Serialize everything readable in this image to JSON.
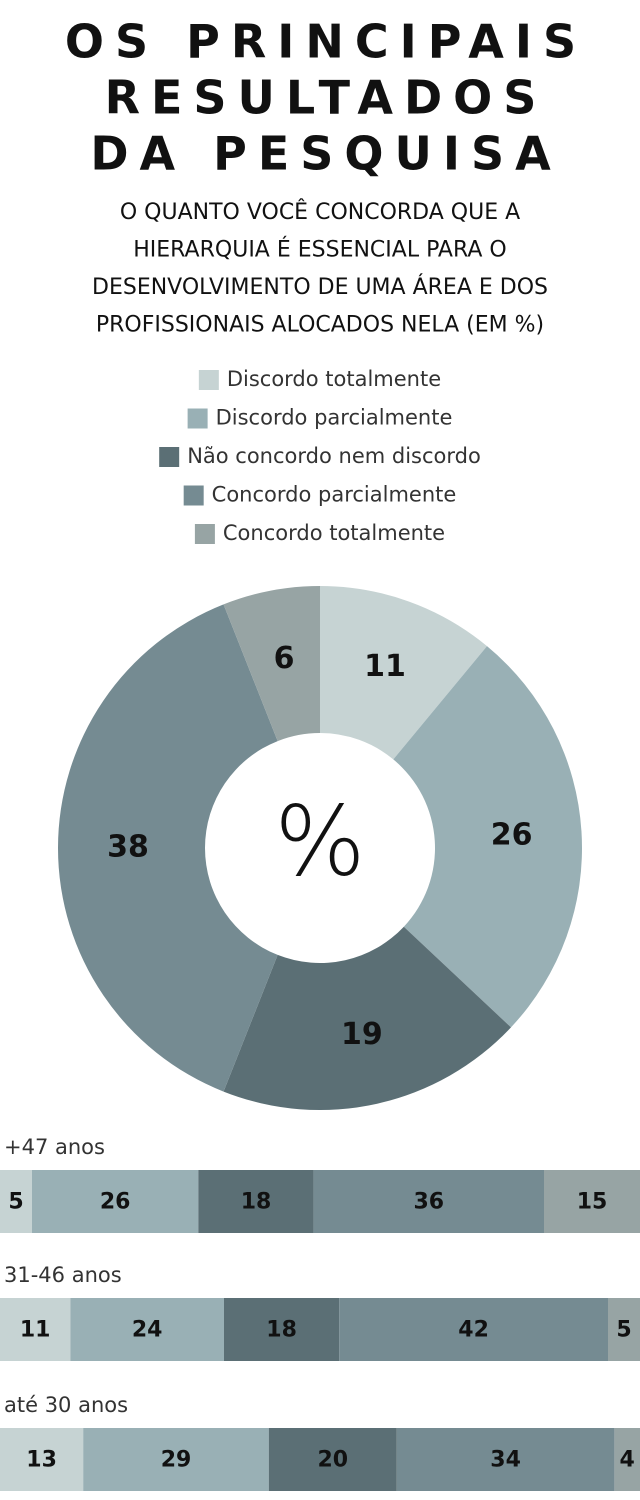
{
  "chart_data": [
    {
      "type": "pie",
      "title": [
        "OS PRINCIPAIS",
        "RESULTADOS",
        "DA PESQUISA"
      ],
      "subtitle": [
        "O QUANTO VOCÊ CONCORDA QUE A",
        "HIERARQUIA É ESSENCIAL PARA O",
        "DESENVOLVIMENTO DE UMA ÁREA E DOS",
        "PROFISSIONAIS ALOCADOS NELA (EM %)"
      ],
      "categories": [
        "Discordo totalmente",
        "Discordo parcialmente",
        "Não concordo nem discordo",
        "Concordo parcialmente",
        "Concordo totalmente"
      ],
      "values": [
        11,
        26,
        19,
        38,
        6
      ],
      "colors": [
        "#c6d3d3",
        "#99b0b5",
        "#5b6f75",
        "#758b92",
        "#97a4a4"
      ],
      "center_label": "%"
    },
    {
      "type": "bar",
      "orientation": "horizontal",
      "stacked": true,
      "categories": [
        "+47 anos",
        "31-46 anos",
        "até 30 anos"
      ],
      "xlim": [
        0,
        100
      ],
      "series": [
        {
          "color": "#c6d3d3",
          "values": [
            5,
            11,
            13
          ]
        },
        {
          "color": "#99b0b5",
          "values": [
            26,
            24,
            29
          ]
        },
        {
          "color": "#5b6f75",
          "values": [
            18,
            18,
            20
          ]
        },
        {
          "color": "#758b92",
          "values": [
            36,
            42,
            34
          ]
        },
        {
          "color": "#97a4a4",
          "values": [
            15,
            5,
            4
          ]
        }
      ]
    }
  ]
}
